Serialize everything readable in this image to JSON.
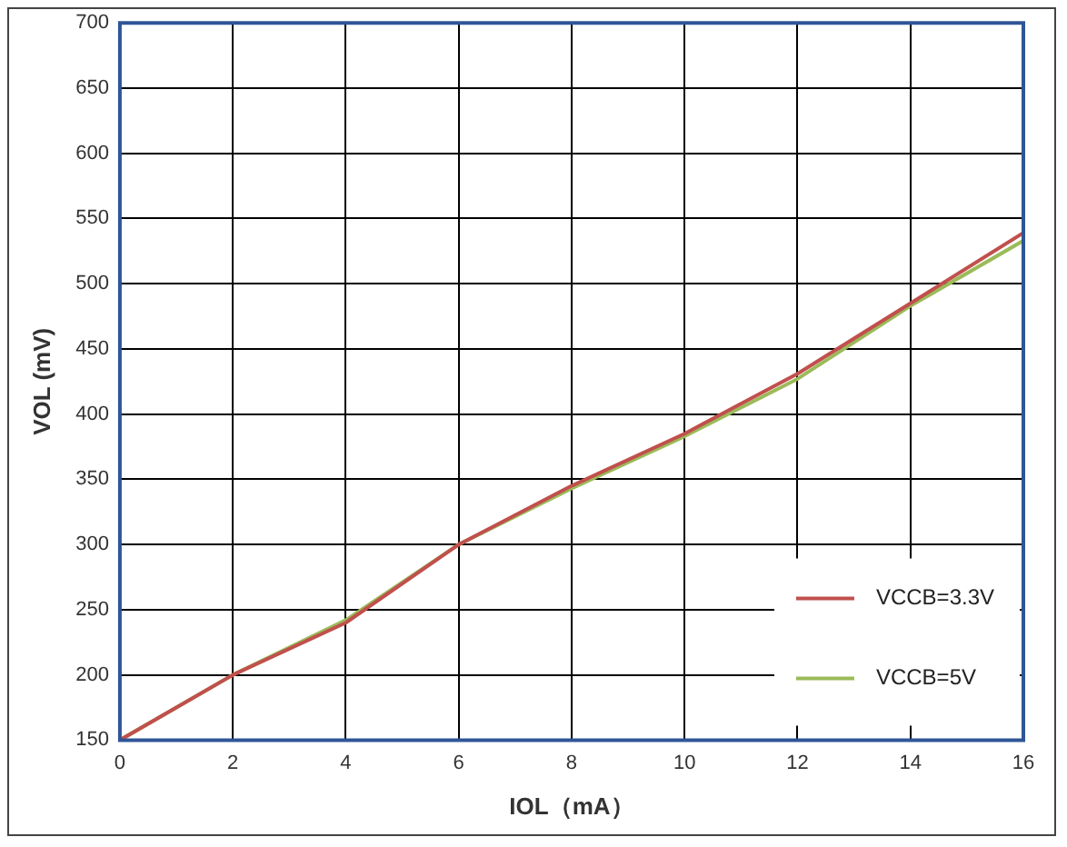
{
  "chart_data": {
    "type": "line",
    "xlabel": "IOL（mA）",
    "ylabel": "VOL (mV)",
    "x": [
      0,
      2,
      4,
      6,
      8,
      10,
      12,
      14,
      16
    ],
    "series": [
      {
        "name": "VCCB=3.3V",
        "color": "#c0504d",
        "values": [
          150,
          200,
          240,
          300,
          345,
          385,
          431,
          485,
          539
        ]
      },
      {
        "name": "VCCB=5V",
        "color": "#9bbb59",
        "values": [
          150,
          200,
          242,
          300,
          343,
          383,
          427,
          483,
          533
        ]
      }
    ],
    "xlim": [
      0,
      16
    ],
    "xticks": [
      0,
      2,
      4,
      6,
      8,
      10,
      12,
      14,
      16
    ],
    "ylim": [
      150,
      700
    ],
    "yticks": [
      150,
      200,
      250,
      300,
      350,
      400,
      450,
      500,
      550,
      600,
      650,
      700
    ],
    "grid": true,
    "legend": "bottom right",
    "marker": "none",
    "line_style": "solid"
  }
}
